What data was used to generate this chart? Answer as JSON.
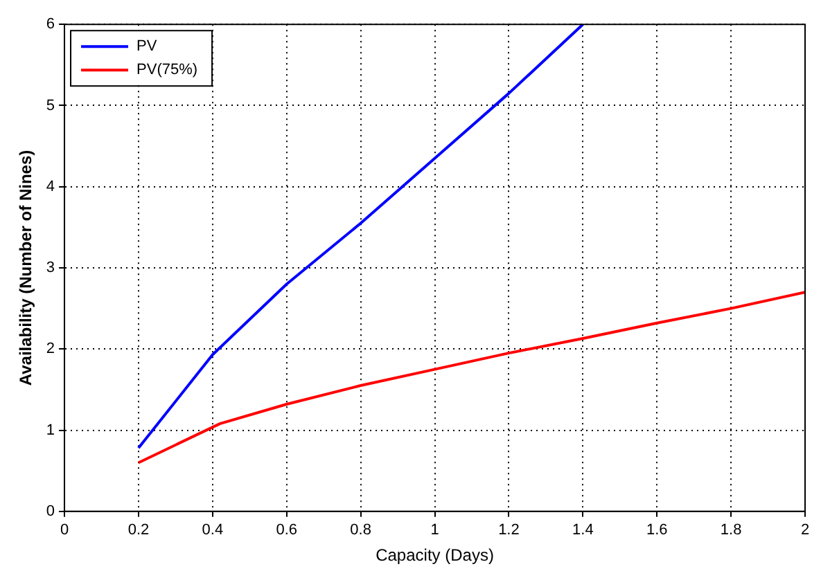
{
  "chart_data": {
    "type": "line",
    "xlabel": "Capacity (Days)",
    "ylabel": "Availability (Number of Nines)",
    "xlim": [
      0,
      2
    ],
    "xticks": [
      0,
      0.2,
      0.4,
      0.6,
      0.8,
      1,
      1.2,
      1.4,
      1.6,
      1.8,
      2
    ],
    "ylim": [
      0,
      6
    ],
    "yticks": [
      0,
      1,
      2,
      3,
      4,
      5,
      6
    ],
    "grid": true,
    "legend": "top left",
    "marker": "none",
    "series": [
      {
        "name": "PV",
        "color": "#0000ff",
        "x": [
          0.2,
          0.4,
          0.6,
          0.8,
          1.0,
          1.2,
          1.4
        ],
        "values": [
          0.78,
          1.93,
          2.8,
          3.55,
          4.35,
          5.15,
          6.0
        ]
      },
      {
        "name": "PV(75%)",
        "color": "#ff0000",
        "x": [
          0.2,
          0.42,
          0.6,
          0.8,
          1.0,
          1.2,
          1.4,
          1.6,
          1.8,
          2.0
        ],
        "values": [
          0.6,
          1.08,
          1.32,
          1.55,
          1.75,
          1.95,
          2.13,
          2.32,
          2.5,
          2.7
        ]
      }
    ]
  }
}
